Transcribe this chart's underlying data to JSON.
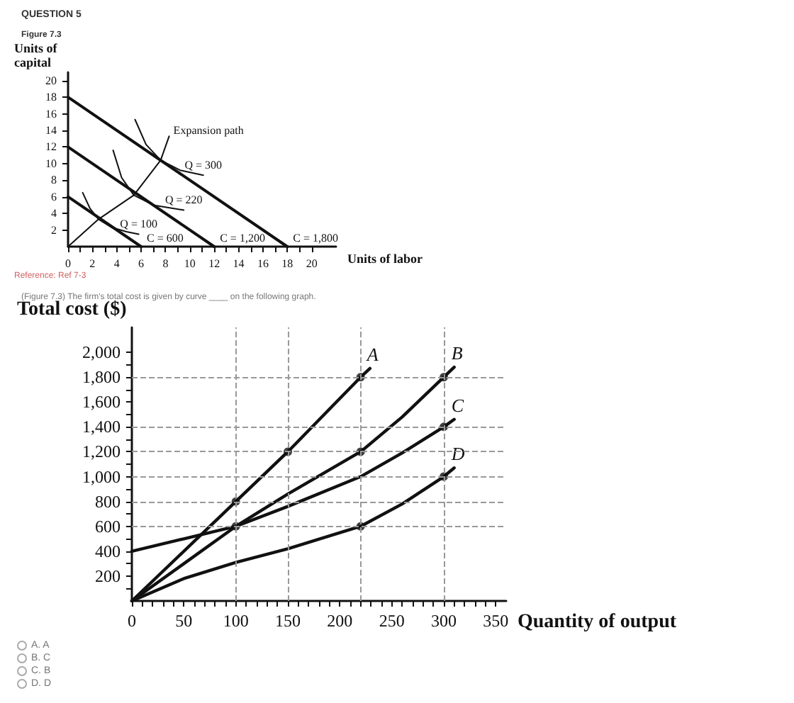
{
  "chart_data": [
    {
      "type": "line",
      "title": "QUESTION 5",
      "subtitle": "Figure 7.3",
      "xlabel": "Units of labor",
      "ylabel": "Units of capital",
      "annotations": [
        "Reference: Ref 7-3"
      ],
      "xlim": [
        0,
        22
      ],
      "ylim": [
        0,
        21
      ],
      "xticks": [
        0,
        {
          "value": 1,
          "label": null
        },
        2,
        {
          "value": 3,
          "label": null
        },
        4,
        {
          "value": 5,
          "label": null
        },
        6,
        {
          "value": 7,
          "label": null
        },
        8,
        {
          "value": 9,
          "label": null
        },
        10,
        {
          "value": 11,
          "label": null
        },
        12,
        {
          "value": 13,
          "label": null
        },
        14,
        {
          "value": 15,
          "label": null
        },
        16,
        {
          "value": 17,
          "label": null
        },
        18,
        {
          "value": 19,
          "label": null
        },
        20
      ],
      "yticks": [
        2,
        4,
        6,
        8,
        10,
        12,
        14,
        16,
        18,
        20
      ],
      "marker": "none",
      "line_style": "solid",
      "series": [
        {
          "name": "C = 600",
          "color": "#111111",
          "x": [
            0,
            6
          ],
          "values": [
            6,
            0
          ]
        },
        {
          "name": "C = 1,200",
          "color": "#111111",
          "x": [
            0,
            12
          ],
          "values": [
            12,
            0
          ]
        },
        {
          "name": "C = 1,800",
          "color": "#111111",
          "x": [
            0,
            18
          ],
          "values": [
            18,
            0
          ]
        },
        {
          "name": "Q = 100",
          "color": "#111111",
          "x": [
            1.2,
            1.8,
            2.5,
            3.6,
            4.8,
            5.8
          ],
          "values": [
            6.5,
            4.6,
            3.3,
            2.3,
            1.8,
            1.5
          ]
        },
        {
          "name": "Q = 220",
          "color": "#111111",
          "x": [
            3.7,
            4.4,
            5.4,
            7,
            9.5
          ],
          "values": [
            11.6,
            8.3,
            6.2,
            5,
            4.4
          ]
        },
        {
          "name": "Q = 300",
          "color": "#111111",
          "x": [
            5.5,
            6.4,
            7.6,
            9.2,
            11.1
          ],
          "values": [
            15.3,
            12.3,
            10.4,
            9.2,
            8.6
          ]
        },
        {
          "name": "Expansion path",
          "color": "#111111",
          "x": [
            0,
            2.5,
            5.4,
            7.6,
            8.3
          ],
          "values": [
            0,
            3.3,
            6.2,
            10.4,
            13.3
          ]
        }
      ]
    },
    {
      "type": "line",
      "title": "(Figure 7.3) The firm's total cost is given by curve ____ on the following graph.",
      "xlabel": "Quantity of output",
      "ylabel": "Total cost ($)",
      "annotations": [
        "A. A",
        "B. C",
        "C. B",
        "D. D"
      ],
      "xlim": [
        0,
        360
      ],
      "ylim": [
        0,
        2200
      ],
      "xticks": [
        0,
        {
          "value": 10,
          "label": null
        },
        {
          "value": 20,
          "label": null
        },
        {
          "value": 30,
          "label": null
        },
        {
          "value": 40,
          "label": null
        },
        50,
        {
          "value": 60,
          "label": null
        },
        {
          "value": 70,
          "label": null
        },
        {
          "value": 80,
          "label": null
        },
        {
          "value": 90,
          "label": null
        },
        100,
        {
          "value": 110,
          "label": null
        },
        {
          "value": 120,
          "label": null
        },
        {
          "value": 130,
          "label": null
        },
        {
          "value": 140,
          "label": null
        },
        150,
        {
          "value": 160,
          "label": null
        },
        {
          "value": 170,
          "label": null
        },
        {
          "value": 180,
          "label": null
        },
        {
          "value": 190,
          "label": null
        },
        200,
        {
          "value": 210,
          "label": null
        },
        {
          "value": 220,
          "label": null
        },
        {
          "value": 230,
          "label": null
        },
        {
          "value": 240,
          "label": null
        },
        250,
        {
          "value": 260,
          "label": null
        },
        {
          "value": 270,
          "label": null
        },
        {
          "value": 280,
          "label": null
        },
        {
          "value": 290,
          "label": null
        },
        300,
        {
          "value": 310,
          "label": null
        },
        {
          "value": 320,
          "label": null
        },
        {
          "value": 330,
          "label": null
        },
        {
          "value": 340,
          "label": null
        },
        350
      ],
      "yticks": [
        {
          "value": 100,
          "label": null
        },
        200,
        {
          "value": 300,
          "label": null
        },
        400,
        {
          "value": 500,
          "label": null
        },
        600,
        {
          "value": 700,
          "label": null
        },
        800,
        {
          "value": 900,
          "label": null
        },
        {
          "value": 1000,
          "label": "1,000"
        },
        {
          "value": 1100,
          "label": null
        },
        {
          "value": 1200,
          "label": "1,200"
        },
        {
          "value": 1300,
          "label": null
        },
        {
          "value": 1400,
          "label": "1,400"
        },
        {
          "value": 1500,
          "label": null
        },
        {
          "value": 1600,
          "label": "1,600"
        },
        {
          "value": 1700,
          "label": null
        },
        {
          "value": 1800,
          "label": "1,800"
        },
        {
          "value": 1900,
          "label": null
        },
        {
          "value": 2000,
          "label": "2,000"
        }
      ],
      "marker": "none",
      "line_style": "solid",
      "ref_lines": [
        {
          "axis": "y",
          "value": 1800,
          "color": "#999999",
          "line_style": "dashed"
        },
        {
          "axis": "y",
          "value": 1400,
          "color": "#999999",
          "line_style": "dashed"
        },
        {
          "axis": "y",
          "value": 1200,
          "color": "#999999",
          "line_style": "dashed"
        },
        {
          "axis": "y",
          "value": 1000,
          "color": "#999999",
          "line_style": "dashed"
        },
        {
          "axis": "y",
          "value": 800,
          "color": "#999999",
          "line_style": "dashed"
        },
        {
          "axis": "y",
          "value": 600,
          "color": "#999999",
          "line_style": "dashed"
        },
        {
          "axis": "x",
          "value": 100,
          "color": "#999999",
          "line_style": "dashed"
        },
        {
          "axis": "x",
          "value": 150,
          "color": "#999999",
          "line_style": "dashed"
        },
        {
          "axis": "x",
          "value": 220,
          "color": "#999999",
          "line_style": "dashed"
        },
        {
          "axis": "x",
          "value": 300,
          "color": "#999999",
          "line_style": "dashed"
        }
      ],
      "series": [
        {
          "name": "A",
          "color": "#111111",
          "x": [
            0,
            100,
            150,
            220,
            229
          ],
          "values": [
            0,
            800,
            1200,
            1800,
            1870
          ]
        },
        {
          "name": "B",
          "color": "#111111",
          "x": [
            0,
            50,
            100,
            150,
            220,
            260,
            300,
            310
          ],
          "values": [
            0,
            300,
            600,
            860,
            1200,
            1480,
            1800,
            1880
          ]
        },
        {
          "name": "C",
          "color": "#111111",
          "x": [
            0,
            50,
            100,
            150,
            220,
            260,
            300,
            310
          ],
          "values": [
            400,
            500,
            600,
            760,
            1000,
            1190,
            1400,
            1460
          ]
        },
        {
          "name": "D",
          "color": "#111111",
          "x": [
            0,
            50,
            100,
            150,
            220,
            260,
            300,
            310
          ],
          "values": [
            0,
            180,
            310,
            420,
            600,
            780,
            1000,
            1070
          ]
        },
        {
          "type": "scatter",
          "marker": "circle",
          "color": "#111111",
          "x": [
            100,
            150,
            220,
            100,
            220,
            300,
            300,
            220,
            300
          ],
          "values": [
            800,
            1200,
            1800,
            600,
            1200,
            1800,
            1400,
            600,
            1000
          ]
        }
      ]
    }
  ]
}
